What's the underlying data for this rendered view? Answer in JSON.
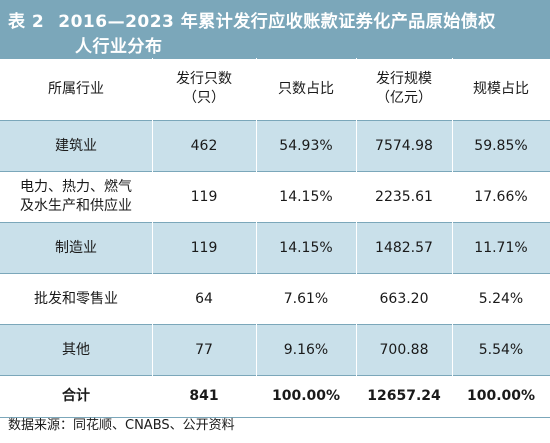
{
  "title": {
    "prefix": "表 2",
    "line1": "2016—2023 年累计发行应收账款证券化产品原始债权",
    "line2": "人行业分布"
  },
  "table": {
    "headers": [
      "所属行业",
      "发行只数\n（只）",
      "只数占比",
      "发行规模\n（亿元）",
      "规模占比"
    ],
    "rows": [
      [
        "建筑业",
        "462",
        "54.93%",
        "7574.98",
        "59.85%"
      ],
      [
        "电力、热力、燃气\n及水生产和供应业",
        "119",
        "14.15%",
        "2235.61",
        "17.66%"
      ],
      [
        "制造业",
        "119",
        "14.15%",
        "1482.57",
        "11.71%"
      ],
      [
        "批发和零售业",
        "64",
        "7.61%",
        "663.20",
        "5.24%"
      ],
      [
        "其他",
        "77",
        "9.16%",
        "700.88",
        "5.54%"
      ]
    ],
    "total": [
      "合计",
      "841",
      "100.00%",
      "12657.24",
      "100.00%"
    ]
  },
  "source": "数据来源：同花顺、CNABS、公开资料",
  "colors": {
    "title_bg": "#7ba7ba",
    "band_bg": "#c9e0ea",
    "rule": "#7ba7ba"
  }
}
